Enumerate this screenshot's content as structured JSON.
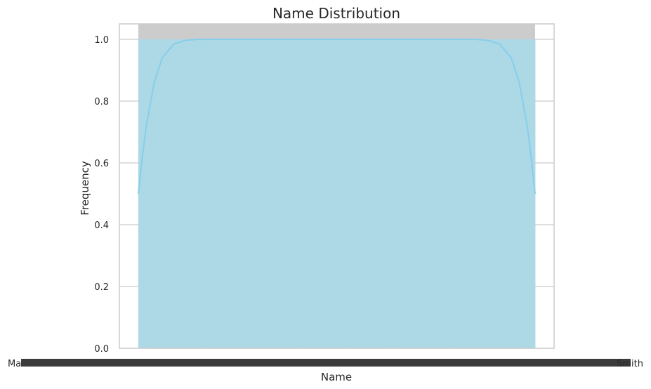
{
  "chart_data": {
    "type": "bar",
    "title": "Name Distribution",
    "xlabel": "Name",
    "ylabel": "Frequency",
    "ylim": [
      0,
      1.05
    ],
    "yticks": [
      0.0,
      0.2,
      0.4,
      0.6,
      0.8,
      1.0
    ],
    "ytick_labels": [
      "0.0",
      "0.2",
      "0.4",
      "0.6",
      "0.8",
      "1.0"
    ],
    "grid": "horizontal",
    "bar_value": 1.0,
    "category_count": 32,
    "x_tick_label_start": "Ma",
    "x_tick_label_end": "Smith",
    "kde": {
      "x": [
        0,
        0.01,
        0.02,
        0.04,
        0.06,
        0.09,
        0.12,
        0.15,
        0.2,
        0.3,
        0.5,
        0.7,
        0.8,
        0.85,
        0.88,
        0.91,
        0.94,
        0.96,
        0.98,
        0.99,
        1.0
      ],
      "y": [
        0.5,
        0.62,
        0.72,
        0.86,
        0.94,
        0.985,
        0.997,
        1.0,
        1.0,
        1.0,
        1.0,
        1.0,
        1.0,
        1.0,
        0.997,
        0.985,
        0.94,
        0.86,
        0.72,
        0.62,
        0.5
      ]
    },
    "colors": {
      "bar_fill": "#add8e6",
      "kde_line": "#87ceeb",
      "axes_face": "#ffffff",
      "band": "#cccccc",
      "grid": "#cccccc",
      "spine": "#cccccc"
    }
  }
}
